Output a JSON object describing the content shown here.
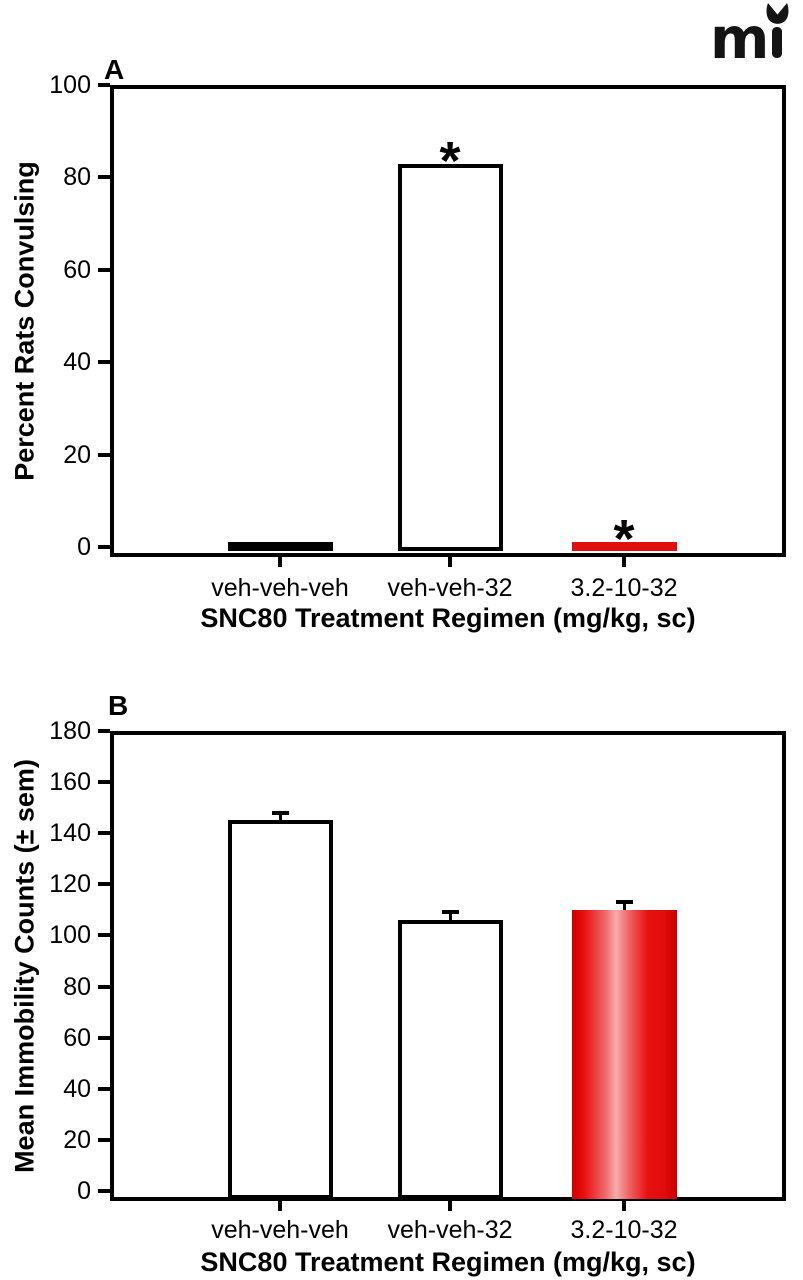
{
  "logo": {
    "text": "m",
    "crown_icon": "crown-icon",
    "color": "#141414"
  },
  "colors": {
    "background": "#ffffff",
    "axis_black": "#000000",
    "bar_red_solid": "#e11010",
    "bar_red_gradient_edge": "#cf0000",
    "bar_red_gradient_center": "#f7abab"
  },
  "chart_data": [
    {
      "type": "bar",
      "panel_label": "A",
      "title": "",
      "ylabel": "Percent Rats Convulsing",
      "xlabel": "SNC80 Treatment Regimen (mg/kg, sc)",
      "categories": [
        "veh-veh-veh",
        "veh-veh-32",
        "3.2-10-32"
      ],
      "values": [
        0,
        83,
        0
      ],
      "sem": null,
      "significance": [
        "",
        "*",
        "*"
      ],
      "bar_styles": [
        "solid-black",
        "white-outline",
        "solid-red"
      ],
      "ylim": [
        0,
        100
      ],
      "yticks": [
        0,
        20,
        40,
        60,
        80,
        100
      ],
      "grid": false,
      "legend": null
    },
    {
      "type": "bar",
      "panel_label": "B",
      "title": "",
      "ylabel": "Mean Immobility Counts (± sem)",
      "xlabel": "SNC80 Treatment Regimen (mg/kg, sc)",
      "categories": [
        "veh-veh-veh",
        "veh-veh-32",
        "3.2-10-32"
      ],
      "values": [
        145,
        106,
        110
      ],
      "sem": [
        3,
        3,
        3
      ],
      "significance": [
        "",
        "",
        ""
      ],
      "bar_styles": [
        "white-outline",
        "white-outline",
        "red-gradient"
      ],
      "ylim": [
        0,
        180
      ],
      "yticks": [
        0,
        20,
        40,
        60,
        80,
        100,
        120,
        140,
        160,
        180
      ],
      "grid": false,
      "legend": null
    }
  ]
}
